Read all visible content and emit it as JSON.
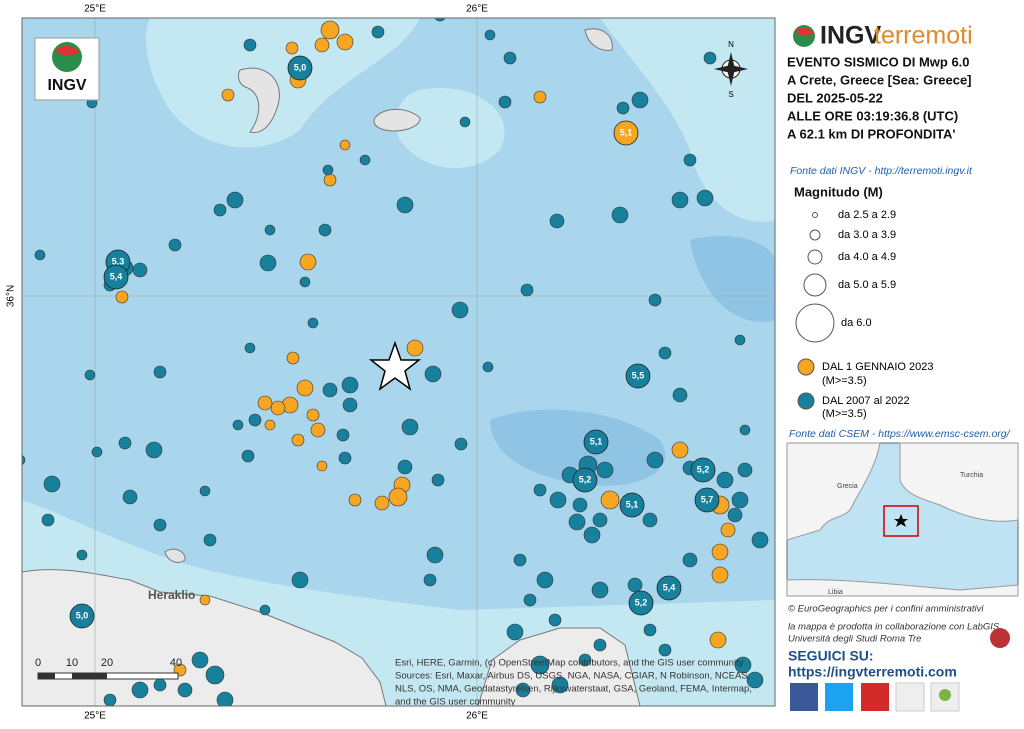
{
  "map": {
    "logo": "INGV",
    "lon_labels": [
      "25°E",
      "26°E"
    ],
    "lat_label": "36°N",
    "compass": [
      "N",
      "S"
    ],
    "places": [
      "Heraklio"
    ],
    "scale": [
      "0",
      "10",
      "20",
      "40"
    ],
    "attribution": [
      "Esri, HERE, Garmin, (c) OpenStreetMap contributors, and the GIS user community",
      "Sources: Esri, Maxar, Airbus DS, USGS, NGA, NASA, CGIAR, N Robinson, NCEAS,",
      "NLS, OS, NMA, Geodatastyrelsen, Rijkswaterstaat, GSA, Geoland, FEMA, Intermap,",
      "and the GIS user community"
    ],
    "events": [
      {
        "label": "5,0"
      },
      {
        "label": "5,1"
      },
      {
        "label": "5,3"
      },
      {
        "label": "5,4"
      },
      {
        "label": "5,5"
      },
      {
        "label": "5,1"
      },
      {
        "label": "5,2"
      },
      {
        "label": "5,2"
      },
      {
        "label": "5,7"
      },
      {
        "label": "5,1"
      },
      {
        "label": "5,4"
      },
      {
        "label": "5,2"
      },
      {
        "label": "5,0"
      }
    ]
  },
  "panel": {
    "brand": [
      "INGV",
      "terremoti"
    ],
    "event": [
      "EVENTO SISMICO DI Mwp 6.0",
      "A Crete, Greece [Sea: Greece]",
      "DEL 2025-05-22",
      "ALLE ORE 03:19:36.8 (UTC)",
      "A 62.1 km DI PROFONDITA'"
    ],
    "source_ingv": "Fonte dati INGV - http://terremoti.ingv.it",
    "legend_title": "Magnitudo (M)",
    "magnitude_classes": [
      "da 2.5 a 2.9",
      "da 3.0 a 3.9",
      "da 4.0 a 4.9",
      "da 5.0 a 5.9",
      "da 6.0"
    ],
    "periods": [
      {
        "label": "DAL 1 GENNAIO 2023",
        "note": "(M>=3.5)"
      },
      {
        "label": "DAL 2007 al 2022",
        "note": "(M>=3.5)"
      }
    ],
    "source_csem": "Fonte dati CSEM - https://www.emsc-csem.org/",
    "inset_labels": [
      "Grecia",
      "Turchia",
      "Libia"
    ],
    "credits": [
      "© EuroGeographics per i confini amministrativi",
      "la mappa è prodotta in collaborazione con LabGIS",
      "Università degli Studi Roma Tre"
    ],
    "follow": "SEGUICI SU:",
    "url": "https://ingvterremoti.com"
  }
}
